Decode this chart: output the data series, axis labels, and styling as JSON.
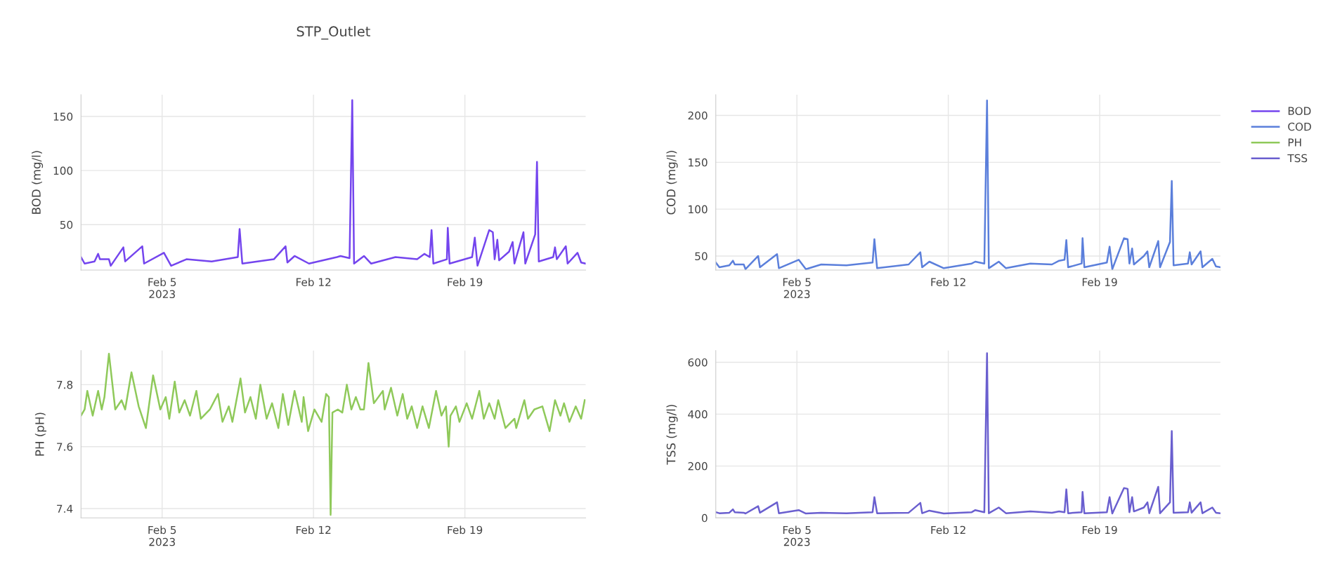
{
  "chart_data": [
    {
      "type": "line",
      "title": "STP_Outlet",
      "ylabel": "BOD (mg/l)",
      "grid": true,
      "xlim": [
        "2023-02-01T06:00",
        "2023-02-24T14:00"
      ],
      "ylim": [
        8,
        170
      ],
      "yticks": [
        50,
        100,
        150
      ],
      "xticks": [
        {
          "value": "2023-02-05",
          "label": "Feb 5\n2023"
        },
        {
          "value": "2023-02-12",
          "label": "Feb 12"
        },
        {
          "value": "2023-02-19",
          "label": "Feb 19"
        }
      ],
      "x": [
        "2023-02-01T06:00",
        "2023-02-01T10:00",
        "2023-02-01T21:00",
        "2023-02-02T01:00",
        "2023-02-02T03:00",
        "2023-02-02T13:00",
        "2023-02-02T15:00",
        "2023-02-03T05:00",
        "2023-02-03T07:00",
        "2023-02-04T02:00",
        "2023-02-04T04:00",
        "2023-02-05T02:00",
        "2023-02-05T10:00",
        "2023-02-06T03:00",
        "2023-02-07T07:00",
        "2023-02-08T12:00",
        "2023-02-08T14:00",
        "2023-02-08T17:00",
        "2023-02-10T04:00",
        "2023-02-10T17:00",
        "2023-02-10T19:00",
        "2023-02-11T03:00",
        "2023-02-11T19:00",
        "2023-02-13T02:00",
        "2023-02-13T06:00",
        "2023-02-13T16:00",
        "2023-02-13T19:00",
        "2023-02-13T21:00",
        "2023-02-14T08:00",
        "2023-02-14T16:00",
        "2023-02-15T19:00",
        "2023-02-16T19:00",
        "2023-02-17T03:00",
        "2023-02-17T09:00",
        "2023-02-17T11:00",
        "2023-02-17T13:00",
        "2023-02-18T04:00",
        "2023-02-18T05:00",
        "2023-02-18T07:00",
        "2023-02-19T08:00",
        "2023-02-19T11:00",
        "2023-02-19T14:00",
        "2023-02-20T03:00",
        "2023-02-20T07:00",
        "2023-02-20T09:00",
        "2023-02-20T12:00",
        "2023-02-20T14:00",
        "2023-02-21T01:00",
        "2023-02-21T05:00",
        "2023-02-21T07:00",
        "2023-02-21T17:00",
        "2023-02-21T19:00",
        "2023-02-22T06:00",
        "2023-02-22T08:00",
        "2023-02-22T10:00",
        "2023-02-23T02:00",
        "2023-02-23T04:00",
        "2023-02-23T06:00",
        "2023-02-23T16:00",
        "2023-02-23T18:00",
        "2023-02-24T05:00",
        "2023-02-24T09:00",
        "2023-02-24T14:00"
      ],
      "series": [
        {
          "name": "BOD",
          "color": "#7445ee",
          "values": [
            20,
            14,
            16,
            23,
            18,
            18,
            12,
            29,
            16,
            30,
            14,
            24,
            12,
            18,
            16,
            20,
            46,
            14,
            18,
            30,
            15,
            21,
            14,
            20,
            21,
            19,
            165,
            14,
            21,
            14,
            20,
            18,
            23,
            20,
            45,
            14,
            18,
            47,
            14,
            20,
            38,
            12,
            45,
            43,
            18,
            36,
            17,
            25,
            34,
            14,
            43,
            14,
            41,
            108,
            16,
            20,
            29,
            18,
            30,
            14,
            24,
            15,
            14
          ]
        }
      ]
    },
    {
      "type": "line",
      "ylabel": "COD (mg/l)",
      "grid": true,
      "legend": "top right",
      "xlim": [
        "2023-02-01T06:00",
        "2023-02-24T14:00"
      ],
      "ylim": [
        35,
        222
      ],
      "yticks": [
        50,
        100,
        150,
        200
      ],
      "xticks": [
        {
          "value": "2023-02-05",
          "label": "Feb 5\n2023"
        },
        {
          "value": "2023-02-12",
          "label": "Feb 12"
        },
        {
          "value": "2023-02-19",
          "label": "Feb 19"
        }
      ],
      "x": [
        "2023-02-01T06:00",
        "2023-02-01T10:00",
        "2023-02-01T21:00",
        "2023-02-02T01:00",
        "2023-02-02T03:00",
        "2023-02-02T13:00",
        "2023-02-02T15:00",
        "2023-02-03T05:00",
        "2023-02-03T07:00",
        "2023-02-04T02:00",
        "2023-02-04T04:00",
        "2023-02-05T02:00",
        "2023-02-05T10:00",
        "2023-02-06T03:00",
        "2023-02-07T07:00",
        "2023-02-08T12:00",
        "2023-02-08T14:00",
        "2023-02-08T17:00",
        "2023-02-10T04:00",
        "2023-02-10T17:00",
        "2023-02-10T19:00",
        "2023-02-11T03:00",
        "2023-02-11T19:00",
        "2023-02-13T02:00",
        "2023-02-13T06:00",
        "2023-02-13T16:00",
        "2023-02-13T19:00",
        "2023-02-13T21:00",
        "2023-02-14T08:00",
        "2023-02-14T16:00",
        "2023-02-15T19:00",
        "2023-02-16T19:00",
        "2023-02-17T03:00",
        "2023-02-17T09:00",
        "2023-02-17T11:00",
        "2023-02-17T13:00",
        "2023-02-18T04:00",
        "2023-02-18T05:00",
        "2023-02-18T07:00",
        "2023-02-19T08:00",
        "2023-02-19T11:00",
        "2023-02-19T14:00",
        "2023-02-20T03:00",
        "2023-02-20T07:00",
        "2023-02-20T09:00",
        "2023-02-20T12:00",
        "2023-02-20T14:00",
        "2023-02-21T01:00",
        "2023-02-21T05:00",
        "2023-02-21T07:00",
        "2023-02-21T17:00",
        "2023-02-21T19:00",
        "2023-02-22T06:00",
        "2023-02-22T08:00",
        "2023-02-22T10:00",
        "2023-02-23T02:00",
        "2023-02-23T04:00",
        "2023-02-23T06:00",
        "2023-02-23T16:00",
        "2023-02-23T18:00",
        "2023-02-24T05:00",
        "2023-02-24T09:00",
        "2023-02-24T14:00"
      ],
      "series": [
        {
          "name": "COD",
          "color": "#5b7fdb",
          "values": [
            43,
            38,
            40,
            45,
            41,
            41,
            36,
            50,
            38,
            52,
            37,
            46,
            36,
            41,
            40,
            43,
            68,
            37,
            41,
            54,
            38,
            44,
            37,
            42,
            44,
            42,
            216,
            37,
            44,
            37,
            42,
            41,
            45,
            46,
            67,
            38,
            42,
            69,
            38,
            43,
            60,
            36,
            69,
            68,
            42,
            58,
            41,
            50,
            55,
            38,
            66,
            38,
            65,
            130,
            40,
            42,
            54,
            41,
            55,
            38,
            47,
            39,
            38
          ]
        }
      ]
    },
    {
      "type": "line",
      "ylabel": "PH (pH)",
      "grid": true,
      "xlim": [
        "2023-02-01T06:00",
        "2023-02-24T14:00"
      ],
      "ylim": [
        7.37,
        7.91
      ],
      "yticks": [
        7.4,
        7.6,
        7.8
      ],
      "xticks": [
        {
          "value": "2023-02-05",
          "label": "Feb 5\n2023"
        },
        {
          "value": "2023-02-12",
          "label": "Feb 12"
        },
        {
          "value": "2023-02-19",
          "label": "Feb 19"
        }
      ],
      "x": [
        "2023-02-01T06:00",
        "2023-02-01T10:00",
        "2023-02-01T13:00",
        "2023-02-01T19:00",
        "2023-02-02T01:00",
        "2023-02-02T05:00",
        "2023-02-02T08:00",
        "2023-02-02T13:00",
        "2023-02-02T20:00",
        "2023-02-03T03:00",
        "2023-02-03T07:00",
        "2023-02-03T14:00",
        "2023-02-03T22:00",
        "2023-02-04T06:00",
        "2023-02-04T14:00",
        "2023-02-04T22:00",
        "2023-02-05T04:00",
        "2023-02-05T08:00",
        "2023-02-05T14:00",
        "2023-02-05T19:00",
        "2023-02-06T01:00",
        "2023-02-06T07:00",
        "2023-02-06T14:00",
        "2023-02-06T19:00",
        "2023-02-07T05:00",
        "2023-02-07T14:00",
        "2023-02-07T19:00",
        "2023-02-08T02:00",
        "2023-02-08T06:00",
        "2023-02-08T15:00",
        "2023-02-08T20:00",
        "2023-02-09T02:00",
        "2023-02-09T08:00",
        "2023-02-09T13:00",
        "2023-02-09T20:00",
        "2023-02-10T02:00",
        "2023-02-10T09:00",
        "2023-02-10T14:00",
        "2023-02-10T20:00",
        "2023-02-11T03:00",
        "2023-02-11T11:00",
        "2023-02-11T13:00",
        "2023-02-11T18:00",
        "2023-02-12T01:00",
        "2023-02-12T09:00",
        "2023-02-12T14:00",
        "2023-02-12T17:00",
        "2023-02-12T19:00",
        "2023-02-12T21:00",
        "2023-02-13T03:00",
        "2023-02-13T08:00",
        "2023-02-13T13:00",
        "2023-02-13T18:00",
        "2023-02-13T23:00",
        "2023-02-14T04:00",
        "2023-02-14T08:00",
        "2023-02-14T13:00",
        "2023-02-14T19:00",
        "2023-02-15T05:00",
        "2023-02-15T07:00",
        "2023-02-15T14:00",
        "2023-02-15T21:00",
        "2023-02-16T03:00",
        "2023-02-16T08:00",
        "2023-02-16T13:00",
        "2023-02-16T19:00",
        "2023-02-17T01:00",
        "2023-02-17T08:00",
        "2023-02-17T16:00",
        "2023-02-17T22:00",
        "2023-02-18T03:00",
        "2023-02-18T06:00",
        "2023-02-18T08:00",
        "2023-02-18T14:00",
        "2023-02-18T18:00",
        "2023-02-19T02:00",
        "2023-02-19T08:00",
        "2023-02-19T16:00",
        "2023-02-19T21:00",
        "2023-02-20T03:00",
        "2023-02-20T09:00",
        "2023-02-20T13:00",
        "2023-02-20T21:00",
        "2023-02-21T07:00",
        "2023-02-21T09:00",
        "2023-02-21T18:00",
        "2023-02-21T22:00",
        "2023-02-22T05:00",
        "2023-02-22T14:00",
        "2023-02-22T22:00",
        "2023-02-23T04:00",
        "2023-02-23T10:00",
        "2023-02-23T14:00",
        "2023-02-23T20:00",
        "2023-02-24T03:00",
        "2023-02-24T09:00",
        "2023-02-24T13:00"
      ],
      "series": [
        {
          "name": "PH",
          "color": "#8fc95a",
          "values": [
            7.7,
            7.72,
            7.78,
            7.7,
            7.78,
            7.72,
            7.76,
            7.9,
            7.72,
            7.75,
            7.72,
            7.84,
            7.73,
            7.66,
            7.83,
            7.72,
            7.76,
            7.69,
            7.81,
            7.71,
            7.75,
            7.7,
            7.78,
            7.69,
            7.72,
            7.77,
            7.68,
            7.73,
            7.68,
            7.82,
            7.71,
            7.76,
            7.69,
            7.8,
            7.69,
            7.74,
            7.66,
            7.77,
            7.67,
            7.78,
            7.68,
            7.76,
            7.65,
            7.72,
            7.68,
            7.77,
            7.76,
            7.38,
            7.71,
            7.72,
            7.71,
            7.8,
            7.72,
            7.76,
            7.72,
            7.72,
            7.87,
            7.74,
            7.78,
            7.72,
            7.79,
            7.7,
            7.77,
            7.69,
            7.73,
            7.66,
            7.73,
            7.66,
            7.78,
            7.7,
            7.73,
            7.6,
            7.7,
            7.73,
            7.68,
            7.74,
            7.69,
            7.78,
            7.69,
            7.74,
            7.69,
            7.75,
            7.66,
            7.69,
            7.66,
            7.75,
            7.69,
            7.72,
            7.73,
            7.65,
            7.75,
            7.7,
            7.74,
            7.68,
            7.73,
            7.69,
            7.75
          ]
        }
      ]
    },
    {
      "type": "line",
      "ylabel": "TSS (mg/l)",
      "grid": true,
      "xlim": [
        "2023-02-01T06:00",
        "2023-02-24T14:00"
      ],
      "ylim": [
        0,
        645
      ],
      "yticks": [
        0,
        200,
        400,
        600
      ],
      "xticks": [
        {
          "value": "2023-02-05",
          "label": "Feb 5\n2023"
        },
        {
          "value": "2023-02-12",
          "label": "Feb 12"
        },
        {
          "value": "2023-02-19",
          "label": "Feb 19"
        }
      ],
      "x": [
        "2023-02-01T06:00",
        "2023-02-01T10:00",
        "2023-02-01T21:00",
        "2023-02-02T01:00",
        "2023-02-02T03:00",
        "2023-02-02T13:00",
        "2023-02-02T15:00",
        "2023-02-03T05:00",
        "2023-02-03T07:00",
        "2023-02-04T02:00",
        "2023-02-04T04:00",
        "2023-02-05T02:00",
        "2023-02-05T10:00",
        "2023-02-06T03:00",
        "2023-02-07T07:00",
        "2023-02-08T12:00",
        "2023-02-08T14:00",
        "2023-02-08T17:00",
        "2023-02-10T04:00",
        "2023-02-10T17:00",
        "2023-02-10T19:00",
        "2023-02-11T03:00",
        "2023-02-11T19:00",
        "2023-02-13T02:00",
        "2023-02-13T06:00",
        "2023-02-13T16:00",
        "2023-02-13T19:00",
        "2023-02-13T21:00",
        "2023-02-14T08:00",
        "2023-02-14T16:00",
        "2023-02-15T19:00",
        "2023-02-16T19:00",
        "2023-02-17T03:00",
        "2023-02-17T09:00",
        "2023-02-17T11:00",
        "2023-02-17T13:00",
        "2023-02-18T04:00",
        "2023-02-18T05:00",
        "2023-02-18T07:00",
        "2023-02-19T08:00",
        "2023-02-19T11:00",
        "2023-02-19T14:00",
        "2023-02-20T03:00",
        "2023-02-20T07:00",
        "2023-02-20T09:00",
        "2023-02-20T12:00",
        "2023-02-20T14:00",
        "2023-02-21T01:00",
        "2023-02-21T05:00",
        "2023-02-21T07:00",
        "2023-02-21T17:00",
        "2023-02-21T19:00",
        "2023-02-22T06:00",
        "2023-02-22T08:00",
        "2023-02-22T10:00",
        "2023-02-23T02:00",
        "2023-02-23T04:00",
        "2023-02-23T06:00",
        "2023-02-23T16:00",
        "2023-02-23T18:00",
        "2023-02-24T05:00",
        "2023-02-24T09:00",
        "2023-02-24T14:00"
      ],
      "series": [
        {
          "name": "TSS",
          "color": "#6a5fcf",
          "values": [
            22,
            18,
            20,
            33,
            22,
            20,
            17,
            45,
            20,
            60,
            18,
            30,
            17,
            20,
            18,
            22,
            80,
            18,
            20,
            58,
            18,
            28,
            17,
            22,
            30,
            22,
            635,
            18,
            40,
            18,
            25,
            20,
            25,
            22,
            110,
            18,
            22,
            100,
            18,
            22,
            80,
            17,
            115,
            112,
            22,
            80,
            25,
            40,
            60,
            18,
            120,
            18,
            60,
            335,
            20,
            22,
            60,
            20,
            60,
            18,
            40,
            20,
            18
          ]
        }
      ]
    }
  ]
}
